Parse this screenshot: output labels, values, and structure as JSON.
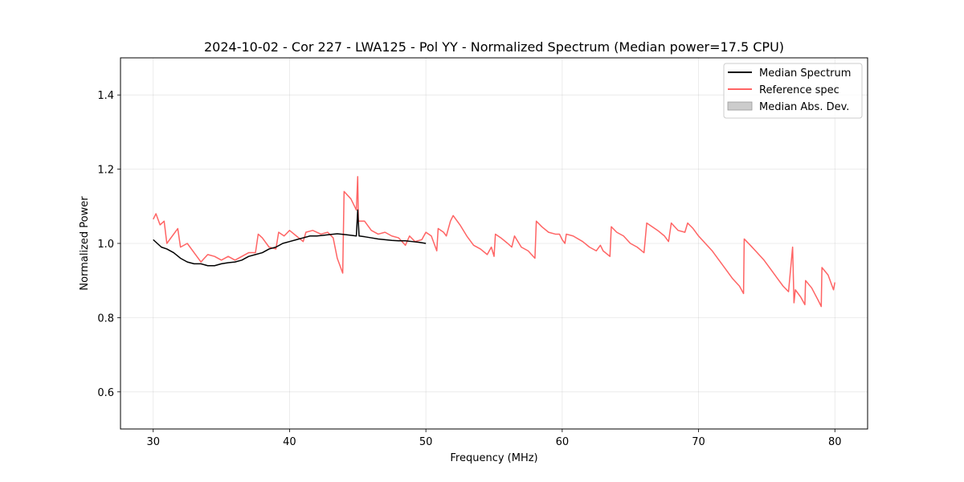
{
  "chart_data": {
    "type": "line",
    "title": "2024-10-02 - Cor 227 - LWA125 - Pol YY - Normalized Spectrum (Median power=17.5 CPU)",
    "xlabel": "Frequency (MHz)",
    "ylabel": "Normalized Power",
    "xlim": [
      27.6,
      82.4
    ],
    "ylim": [
      0.5,
      1.5
    ],
    "xticks": [
      30,
      40,
      50,
      60,
      70,
      80
    ],
    "yticks": [
      0.6,
      0.8,
      1.0,
      1.2,
      1.4
    ],
    "xtick_labels": [
      "30",
      "40",
      "50",
      "60",
      "70",
      "80"
    ],
    "ytick_labels": [
      "0.6",
      "0.8",
      "1.0",
      "1.2",
      "1.4"
    ],
    "grid": true,
    "legend_position": "top-right",
    "legend": [
      "Median Spectrum",
      "Reference spec",
      "Median Abs. Dev."
    ],
    "colors": {
      "median": "#000000",
      "reference": "#ff6464",
      "mad": "#cccccc"
    },
    "series": [
      {
        "name": "Median Spectrum",
        "points": [
          [
            30.0,
            1.01
          ],
          [
            30.3,
            1.0
          ],
          [
            30.6,
            0.99
          ],
          [
            31.0,
            0.985
          ],
          [
            31.5,
            0.975
          ],
          [
            32.0,
            0.96
          ],
          [
            32.5,
            0.95
          ],
          [
            33.0,
            0.945
          ],
          [
            33.5,
            0.945
          ],
          [
            34.0,
            0.94
          ],
          [
            34.5,
            0.94
          ],
          [
            35.0,
            0.945
          ],
          [
            35.5,
            0.948
          ],
          [
            36.0,
            0.95
          ],
          [
            36.5,
            0.955
          ],
          [
            37.0,
            0.965
          ],
          [
            37.5,
            0.97
          ],
          [
            38.0,
            0.975
          ],
          [
            38.5,
            0.985
          ],
          [
            39.0,
            0.99
          ],
          [
            39.5,
            1.0
          ],
          [
            40.0,
            1.005
          ],
          [
            40.5,
            1.01
          ],
          [
            41.0,
            1.015
          ],
          [
            41.5,
            1.02
          ],
          [
            42.0,
            1.02
          ],
          [
            42.5,
            1.022
          ],
          [
            43.0,
            1.024
          ],
          [
            43.5,
            1.026
          ],
          [
            44.0,
            1.024
          ],
          [
            44.5,
            1.022
          ],
          [
            44.9,
            1.02
          ],
          [
            45.0,
            1.09
          ],
          [
            45.1,
            1.02
          ],
          [
            45.5,
            1.018
          ],
          [
            46.0,
            1.015
          ],
          [
            46.5,
            1.012
          ],
          [
            47.0,
            1.01
          ],
          [
            47.5,
            1.008
          ],
          [
            48.0,
            1.007
          ],
          [
            48.5,
            1.007
          ],
          [
            49.0,
            1.005
          ],
          [
            49.5,
            1.003
          ],
          [
            50.0,
            1.0
          ]
        ]
      },
      {
        "name": "Reference spec",
        "points": [
          [
            30.0,
            1.065
          ],
          [
            30.2,
            1.08
          ],
          [
            30.5,
            1.05
          ],
          [
            30.8,
            1.06
          ],
          [
            31.0,
            1.0
          ],
          [
            31.2,
            1.01
          ],
          [
            31.8,
            1.04
          ],
          [
            32.0,
            0.99
          ],
          [
            32.5,
            1.0
          ],
          [
            33.0,
            0.975
          ],
          [
            33.5,
            0.95
          ],
          [
            34.0,
            0.97
          ],
          [
            34.5,
            0.965
          ],
          [
            35.0,
            0.955
          ],
          [
            35.5,
            0.965
          ],
          [
            36.0,
            0.955
          ],
          [
            36.5,
            0.965
          ],
          [
            37.0,
            0.975
          ],
          [
            37.5,
            0.975
          ],
          [
            37.7,
            1.025
          ],
          [
            38.0,
            1.015
          ],
          [
            38.5,
            0.99
          ],
          [
            39.0,
            0.985
          ],
          [
            39.2,
            1.03
          ],
          [
            39.6,
            1.02
          ],
          [
            40.0,
            1.035
          ],
          [
            40.5,
            1.02
          ],
          [
            41.0,
            1.005
          ],
          [
            41.2,
            1.03
          ],
          [
            41.7,
            1.035
          ],
          [
            42.3,
            1.025
          ],
          [
            42.8,
            1.03
          ],
          [
            43.2,
            1.015
          ],
          [
            43.5,
            0.96
          ],
          [
            43.9,
            0.92
          ],
          [
            44.0,
            1.14
          ],
          [
            44.5,
            1.12
          ],
          [
            44.9,
            1.09
          ],
          [
            45.0,
            1.18
          ],
          [
            45.05,
            1.06
          ],
          [
            45.5,
            1.06
          ],
          [
            46.0,
            1.035
          ],
          [
            46.5,
            1.025
          ],
          [
            47.0,
            1.03
          ],
          [
            47.5,
            1.02
          ],
          [
            48.0,
            1.015
          ],
          [
            48.5,
            0.995
          ],
          [
            48.8,
            1.02
          ],
          [
            49.2,
            1.005
          ],
          [
            49.7,
            1.01
          ],
          [
            50.0,
            1.03
          ],
          [
            50.4,
            1.02
          ],
          [
            50.8,
            0.98
          ],
          [
            50.9,
            1.04
          ],
          [
            51.3,
            1.03
          ],
          [
            51.5,
            1.02
          ],
          [
            51.8,
            1.06
          ],
          [
            52.0,
            1.075
          ],
          [
            52.5,
            1.05
          ],
          [
            53.0,
            1.02
          ],
          [
            53.5,
            0.995
          ],
          [
            54.0,
            0.985
          ],
          [
            54.5,
            0.97
          ],
          [
            54.8,
            0.99
          ],
          [
            55.0,
            0.965
          ],
          [
            55.1,
            1.025
          ],
          [
            55.5,
            1.015
          ],
          [
            56.0,
            1.0
          ],
          [
            56.3,
            0.99
          ],
          [
            56.5,
            1.02
          ],
          [
            57.0,
            0.99
          ],
          [
            57.5,
            0.98
          ],
          [
            58.0,
            0.96
          ],
          [
            58.1,
            1.06
          ],
          [
            58.5,
            1.045
          ],
          [
            59.0,
            1.03
          ],
          [
            59.5,
            1.025
          ],
          [
            59.8,
            1.025
          ],
          [
            60.0,
            1.01
          ],
          [
            60.2,
            1.0
          ],
          [
            60.3,
            1.025
          ],
          [
            60.8,
            1.02
          ],
          [
            61.5,
            1.005
          ],
          [
            62.0,
            0.99
          ],
          [
            62.5,
            0.98
          ],
          [
            62.8,
            0.995
          ],
          [
            63.0,
            0.98
          ],
          [
            63.5,
            0.965
          ],
          [
            63.6,
            1.045
          ],
          [
            64.0,
            1.03
          ],
          [
            64.5,
            1.02
          ],
          [
            65.0,
            1.0
          ],
          [
            65.5,
            0.99
          ],
          [
            66.0,
            0.975
          ],
          [
            66.2,
            1.055
          ],
          [
            66.6,
            1.045
          ],
          [
            67.0,
            1.035
          ],
          [
            67.5,
            1.02
          ],
          [
            67.8,
            1.005
          ],
          [
            68.0,
            1.055
          ],
          [
            68.5,
            1.035
          ],
          [
            69.0,
            1.03
          ],
          [
            69.2,
            1.055
          ],
          [
            69.6,
            1.04
          ],
          [
            70.0,
            1.02
          ],
          [
            70.5,
            1.0
          ],
          [
            71.0,
            0.98
          ],
          [
            71.5,
            0.955
          ],
          [
            72.0,
            0.93
          ],
          [
            72.5,
            0.905
          ],
          [
            73.0,
            0.885
          ],
          [
            73.3,
            0.865
          ],
          [
            73.35,
            1.012
          ],
          [
            73.8,
            0.995
          ],
          [
            74.3,
            0.975
          ],
          [
            74.8,
            0.955
          ],
          [
            75.3,
            0.93
          ],
          [
            75.8,
            0.905
          ],
          [
            76.2,
            0.885
          ],
          [
            76.6,
            0.87
          ],
          [
            76.9,
            0.99
          ],
          [
            77.0,
            0.84
          ],
          [
            77.1,
            0.875
          ],
          [
            77.5,
            0.855
          ],
          [
            77.8,
            0.835
          ],
          [
            77.85,
            0.9
          ],
          [
            78.3,
            0.88
          ],
          [
            78.8,
            0.845
          ],
          [
            79.0,
            0.83
          ],
          [
            79.05,
            0.935
          ],
          [
            79.5,
            0.915
          ],
          [
            79.9,
            0.875
          ],
          [
            80.0,
            0.895
          ]
        ]
      }
    ]
  }
}
